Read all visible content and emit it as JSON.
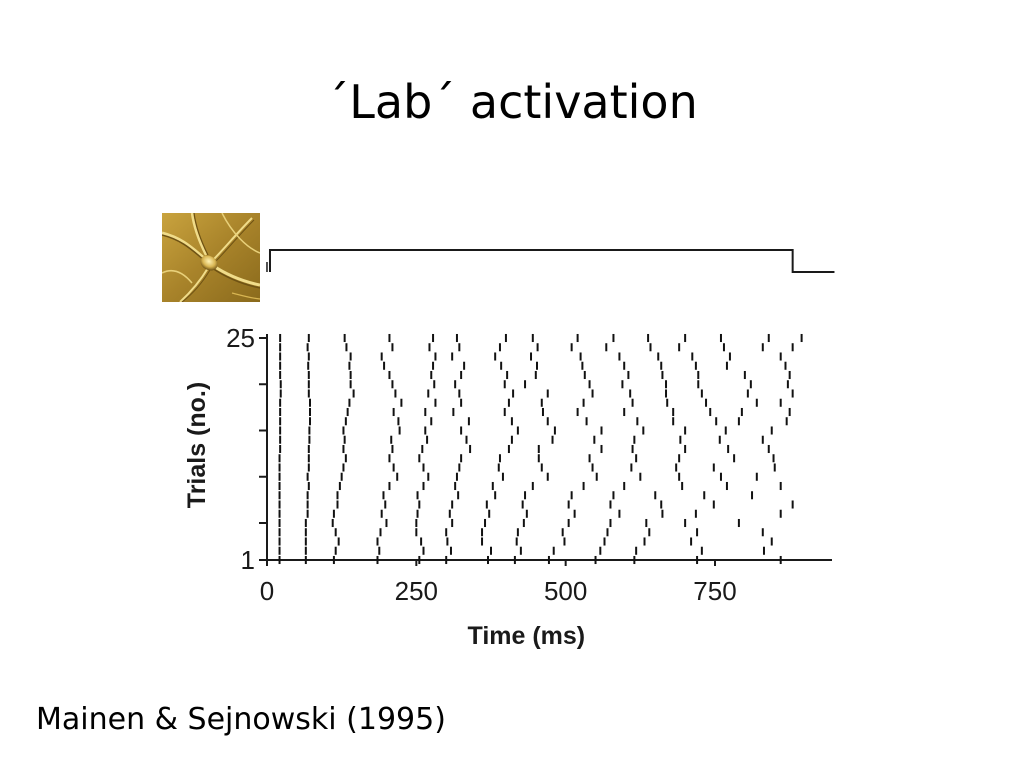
{
  "slide": {
    "title": "´Lab´ activation",
    "citation": "Mainen & Sejnowski (1995)"
  },
  "neuron_image": {
    "icon": "neuron-micrograph-icon",
    "colors": {
      "background": "#b08a2c",
      "highlight": "#f0dc8a",
      "shadow": "#6e5214"
    }
  },
  "chart_data": {
    "type": "scatter",
    "subtype": "spike-raster",
    "xlabel": "Time (ms)",
    "ylabel": "Trials (no.)",
    "xlim": [
      0,
      950
    ],
    "ylim": [
      1,
      25
    ],
    "xticks": [
      0,
      250,
      500,
      750
    ],
    "yticks_labeled": [
      1,
      25
    ],
    "yticks_minor": [
      5,
      10,
      15,
      20
    ],
    "stimulus": {
      "onset_ms": 5,
      "offset_ms": 880,
      "end_ms": 950
    },
    "spike_trains": [
      {
        "trial": 25,
        "times": [
          22,
          70,
          130,
          205,
          278,
          318,
          400,
          445,
          520,
          580,
          638,
          700,
          760,
          840,
          895
        ]
      },
      {
        "trial": 24,
        "times": [
          22,
          68,
          133,
          210,
          272,
          322,
          390,
          453,
          510,
          568,
          642,
          690,
          765,
          830,
          880
        ]
      },
      {
        "trial": 23,
        "times": [
          22,
          70,
          140,
          192,
          282,
          310,
          382,
          442,
          525,
          590,
          655,
          712,
          775,
          860
        ]
      },
      {
        "trial": 22,
        "times": [
          22,
          69,
          138,
          196,
          278,
          330,
          392,
          452,
          528,
          598,
          660,
          718,
          770,
          868
        ]
      },
      {
        "trial": 21,
        "times": [
          22,
          70,
          140,
          205,
          275,
          325,
          402,
          450,
          532,
          605,
          662,
          722,
          800,
          875
        ]
      },
      {
        "trial": 20,
        "times": [
          23,
          70,
          140,
          210,
          280,
          315,
          398,
          432,
          540,
          595,
          668,
          722,
          810,
          872
        ]
      },
      {
        "trial": 19,
        "times": [
          23,
          70,
          145,
          215,
          270,
          322,
          412,
          470,
          545,
          608,
          668,
          728,
          805,
          880
        ]
      },
      {
        "trial": 18,
        "times": [
          22,
          72,
          138,
          225,
          282,
          325,
          405,
          460,
          530,
          612,
          670,
          735,
          820,
          860
        ]
      },
      {
        "trial": 17,
        "times": [
          22,
          72,
          135,
          212,
          265,
          312,
          398,
          462,
          520,
          598,
          680,
          742,
          795,
          875
        ]
      },
      {
        "trial": 16,
        "times": [
          22,
          72,
          132,
          220,
          275,
          338,
          410,
          470,
          535,
          620,
          680,
          752,
          790,
          870
        ]
      },
      {
        "trial": 15,
        "times": [
          22,
          71,
          128,
          222,
          265,
          325,
          420,
          482,
          560,
          630,
          700,
          768,
          845
        ]
      },
      {
        "trial": 14,
        "times": [
          22,
          71,
          130,
          208,
          268,
          334,
          410,
          478,
          548,
          615,
          692,
          758,
          830
        ]
      },
      {
        "trial": 13,
        "times": [
          22,
          70,
          128,
          210,
          260,
          340,
          405,
          455,
          560,
          612,
          700,
          772,
          840
        ]
      },
      {
        "trial": 12,
        "times": [
          21,
          70,
          132,
          205,
          255,
          325,
          390,
          455,
          540,
          618,
          690,
          782,
          848
        ]
      },
      {
        "trial": 11,
        "times": [
          21,
          70,
          128,
          212,
          262,
          322,
          388,
          460,
          545,
          610,
          685,
          748,
          850
        ]
      },
      {
        "trial": 10,
        "times": [
          21,
          68,
          125,
          218,
          270,
          318,
          395,
          470,
          552,
          625,
          690,
          760,
          820
        ]
      },
      {
        "trial": 9,
        "times": [
          21,
          70,
          122,
          205,
          262,
          315,
          378,
          445,
          530,
          598,
          695,
          770,
          860
        ]
      },
      {
        "trial": 8,
        "times": [
          21,
          68,
          118,
          195,
          252,
          320,
          382,
          432,
          510,
          580,
          650,
          732,
          812
        ]
      },
      {
        "trial": 7,
        "times": [
          21,
          68,
          118,
          198,
          255,
          310,
          368,
          428,
          505,
          575,
          660,
          748,
          880
        ]
      },
      {
        "trial": 6,
        "times": [
          21,
          68,
          112,
          192,
          252,
          306,
          372,
          435,
          515,
          590,
          662,
          718,
          860
        ]
      },
      {
        "trial": 5,
        "times": [
          21,
          65,
          110,
          200,
          250,
          310,
          365,
          430,
          505,
          575,
          635,
          700,
          790
        ]
      },
      {
        "trial": 4,
        "times": [
          21,
          65,
          115,
          190,
          250,
          300,
          360,
          420,
          495,
          570,
          640,
          720,
          830
        ]
      },
      {
        "trial": 3,
        "times": [
          21,
          65,
          120,
          185,
          258,
          302,
          360,
          418,
          498,
          565,
          632,
          710,
          845
        ]
      },
      {
        "trial": 2,
        "times": [
          21,
          65,
          115,
          188,
          262,
          308,
          375,
          425,
          480,
          558,
          618,
          728,
          832
        ]
      },
      {
        "trial": 1,
        "times": [
          21,
          65,
          112,
          185,
          255,
          300,
          370,
          415,
          472,
          550,
          615,
          720,
          860
        ]
      }
    ]
  }
}
